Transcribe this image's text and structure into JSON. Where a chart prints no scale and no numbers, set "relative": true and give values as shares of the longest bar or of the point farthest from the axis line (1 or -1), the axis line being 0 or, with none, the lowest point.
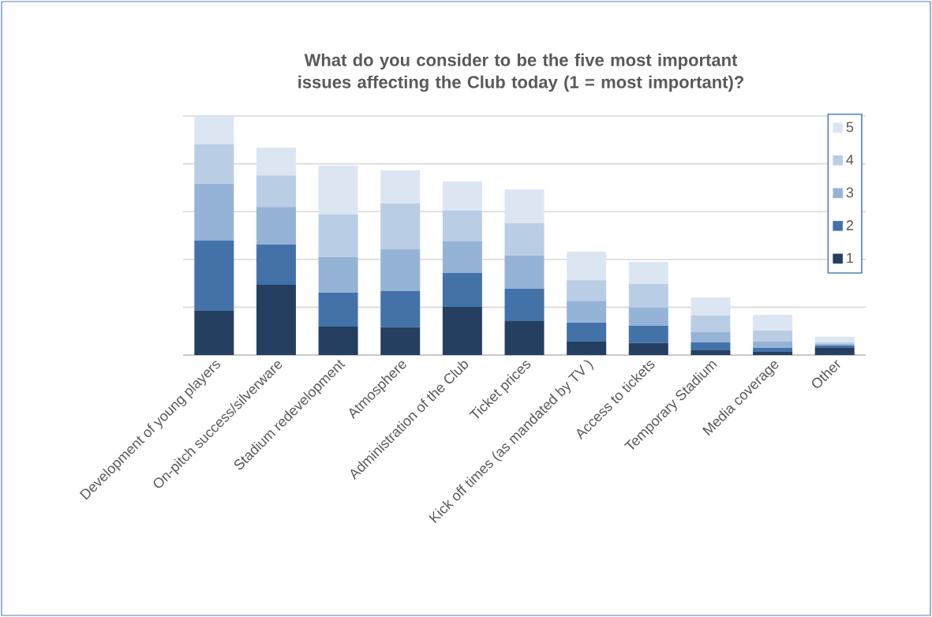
{
  "chart_data": {
    "type": "bar",
    "title": "What do you consider to be the five most important issues affecting the Club today (1 = most important)?",
    "relative": true,
    "stacked": true,
    "grid": "y",
    "legend": "top right",
    "categories": [
      "Development of young players",
      "On-pitch success/silverware",
      "Stadium redevelopment",
      "Atmosphere",
      "Administration of the Club",
      "Ticket prices",
      "Kick off times (as mandated by TV )",
      "Access to tickets",
      "Temporary Stadium",
      "Media coverage",
      "Other"
    ],
    "series": [
      {
        "name": "1",
        "color": "#243f60",
        "values": [
          0.185,
          0.294,
          0.119,
          0.116,
          0.201,
          0.142,
          0.056,
          0.05,
          0.02,
          0.013,
          0.03
        ]
      },
      {
        "name": "2",
        "color": "#4272a8",
        "values": [
          0.294,
          0.168,
          0.142,
          0.152,
          0.142,
          0.135,
          0.079,
          0.073,
          0.033,
          0.017,
          0.01
        ]
      },
      {
        "name": "3",
        "color": "#95b3d7",
        "values": [
          0.238,
          0.158,
          0.149,
          0.175,
          0.132,
          0.139,
          0.092,
          0.076,
          0.043,
          0.026,
          0.007
        ]
      },
      {
        "name": "4",
        "color": "#b9cde5",
        "values": [
          0.165,
          0.132,
          0.178,
          0.191,
          0.129,
          0.135,
          0.086,
          0.099,
          0.069,
          0.046,
          0.007
        ]
      },
      {
        "name": "5",
        "color": "#dce6f2",
        "values": [
          0.118,
          0.116,
          0.205,
          0.139,
          0.122,
          0.142,
          0.119,
          0.092,
          0.076,
          0.066,
          0.023
        ]
      }
    ]
  }
}
